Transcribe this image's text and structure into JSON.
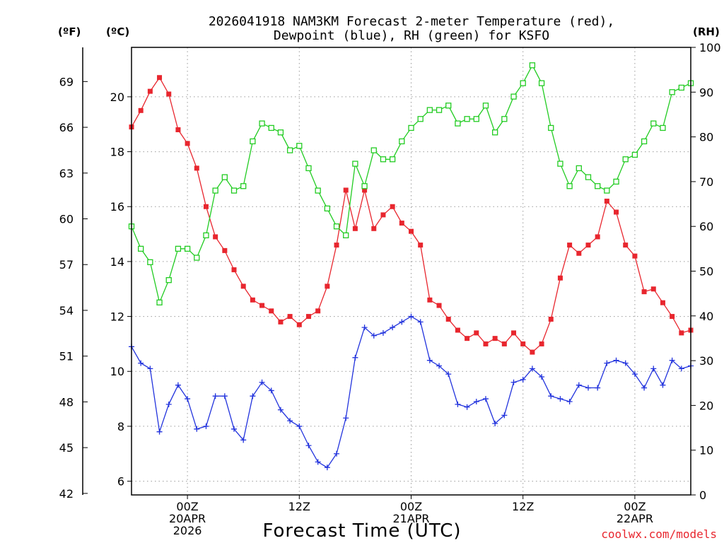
{
  "chart_data": {
    "type": "line",
    "title_lines": [
      "2026041918 NAM3KM Forecast 2-meter Temperature (red),",
      "Dewpoint (blue), RH (green) for KSFO"
    ],
    "xlabel": "Forecast Time (UTC)",
    "credit": "coolwx.com/models",
    "credit_color": "#e8262e",
    "units": {
      "fahrenheit": "(ºF)",
      "celsius": "(ºC)",
      "rh": "(RH)"
    },
    "x_range": [
      -6,
      54
    ],
    "x_ticks": [
      {
        "x": 0,
        "lines": [
          "00Z",
          "20APR",
          "2026"
        ]
      },
      {
        "x": 12,
        "lines": [
          "12Z"
        ]
      },
      {
        "x": 24,
        "lines": [
          "00Z",
          "21APR"
        ]
      },
      {
        "x": 36,
        "lines": [
          "12Z"
        ]
      },
      {
        "x": 48,
        "lines": [
          "00Z",
          "22APR"
        ]
      }
    ],
    "celsius_axis": {
      "range": [
        5.5,
        21.8
      ],
      "ticks": [
        6,
        8,
        10,
        12,
        14,
        16,
        18,
        20
      ]
    },
    "fahrenheit_axis": {
      "range": [
        41.9,
        71.24
      ],
      "ticks": [
        42,
        45,
        48,
        51,
        54,
        57,
        60,
        63,
        66,
        69
      ]
    },
    "rh_axis": {
      "range": [
        0,
        100
      ],
      "ticks": [
        0,
        10,
        20,
        30,
        40,
        50,
        60,
        70,
        80,
        90,
        100
      ]
    },
    "series": [
      {
        "name": "2-meter Temperature",
        "unit": "C",
        "color": "#e8262e",
        "marker": "filled-square",
        "x": [
          -6,
          -5,
          -4,
          -3,
          -2,
          -1,
          0,
          1,
          2,
          3,
          4,
          5,
          6,
          7,
          8,
          9,
          10,
          11,
          12,
          13,
          14,
          15,
          16,
          17,
          18,
          19,
          20,
          21,
          22,
          23,
          24,
          25,
          26,
          27,
          28,
          29,
          30,
          31,
          32,
          33,
          34,
          35,
          36,
          37,
          38,
          39,
          40,
          41,
          42,
          43,
          44,
          45,
          46,
          47,
          48,
          49,
          50,
          51,
          52,
          53,
          54
        ],
        "values": [
          18.9,
          19.5,
          20.2,
          20.7,
          20.1,
          18.8,
          18.3,
          17.4,
          16.0,
          14.9,
          14.4,
          13.7,
          13.1,
          12.6,
          12.4,
          12.2,
          11.8,
          12.0,
          11.7,
          12.0,
          12.2,
          13.1,
          14.6,
          16.6,
          15.2,
          16.6,
          15.2,
          15.7,
          16.0,
          15.4,
          15.1,
          14.6,
          12.6,
          12.4,
          11.9,
          11.5,
          11.2,
          11.4,
          11.0,
          11.2,
          11.0,
          11.4,
          11.0,
          10.7,
          11.0,
          11.9,
          13.4,
          14.6,
          14.3,
          14.6,
          14.9,
          16.2,
          15.8,
          14.6,
          14.2,
          12.9,
          13.0,
          12.5,
          12.0,
          11.4,
          11.5
        ]
      },
      {
        "name": "Dewpoint",
        "unit": "C",
        "color": "#2233dd",
        "marker": "plus",
        "x": [
          -6,
          -5,
          -4,
          -3,
          -2,
          -1,
          0,
          1,
          2,
          3,
          4,
          5,
          6,
          7,
          8,
          9,
          10,
          11,
          12,
          13,
          14,
          15,
          16,
          17,
          18,
          19,
          20,
          21,
          22,
          23,
          24,
          25,
          26,
          27,
          28,
          29,
          30,
          31,
          32,
          33,
          34,
          35,
          36,
          37,
          38,
          39,
          40,
          41,
          42,
          43,
          44,
          45,
          46,
          47,
          48,
          49,
          50,
          51,
          52,
          53,
          54
        ],
        "values": [
          10.9,
          10.3,
          10.1,
          7.8,
          8.8,
          9.5,
          9.0,
          7.9,
          8.0,
          9.1,
          9.1,
          7.9,
          7.5,
          9.1,
          9.6,
          9.3,
          8.6,
          8.2,
          8.0,
          7.3,
          6.7,
          6.5,
          7.0,
          8.3,
          10.5,
          11.6,
          11.3,
          11.4,
          11.6,
          11.8,
          12.0,
          11.8,
          10.4,
          10.2,
          9.9,
          8.8,
          8.7,
          8.9,
          9.0,
          8.1,
          8.4,
          9.6,
          9.7,
          10.1,
          9.8,
          9.1,
          9.0,
          8.9,
          9.5,
          9.4,
          9.4,
          10.3,
          10.4,
          10.3,
          9.9,
          9.4,
          10.1,
          9.5,
          10.4,
          10.1,
          10.2
        ]
      },
      {
        "name": "RH",
        "unit": "%",
        "color": "#22cc22",
        "marker": "open-square",
        "x": [
          -6,
          -5,
          -4,
          -3,
          -2,
          -1,
          0,
          1,
          2,
          3,
          4,
          5,
          6,
          7,
          8,
          9,
          10,
          11,
          12,
          13,
          14,
          15,
          16,
          17,
          18,
          19,
          20,
          21,
          22,
          23,
          24,
          25,
          26,
          27,
          28,
          29,
          30,
          31,
          32,
          33,
          34,
          35,
          36,
          37,
          38,
          39,
          40,
          41,
          42,
          43,
          44,
          45,
          46,
          47,
          48,
          49,
          50,
          51,
          52,
          53,
          54
        ],
        "values": [
          60,
          55,
          52,
          43,
          48,
          55,
          55,
          53,
          58,
          68,
          71,
          68,
          69,
          79,
          83,
          82,
          81,
          77,
          78,
          73,
          68,
          64,
          60,
          58,
          74,
          69,
          77,
          75,
          75,
          79,
          82,
          84,
          86,
          86,
          87,
          83,
          84,
          84,
          87,
          81,
          84,
          89,
          92,
          96,
          92,
          82,
          74,
          69,
          73,
          71,
          69,
          68,
          70,
          75,
          76,
          79,
          83,
          82,
          90,
          91,
          92
        ]
      }
    ]
  }
}
